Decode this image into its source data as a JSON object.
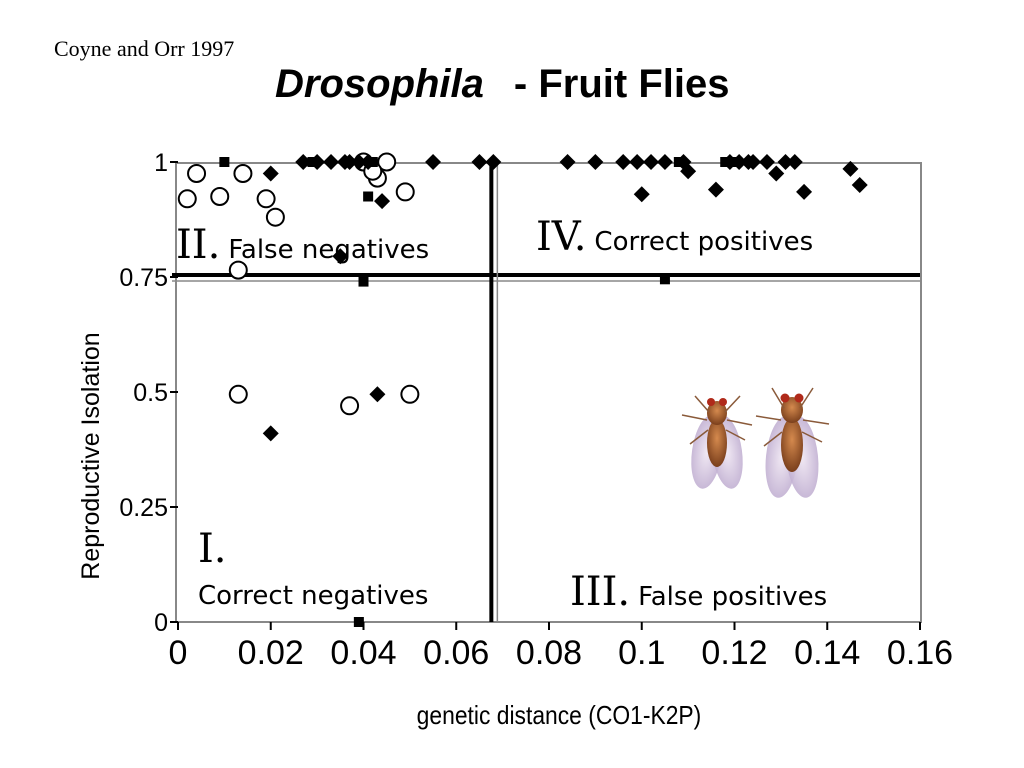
{
  "credit": "Coyne and Orr 1997",
  "title": {
    "italic": "Drosophila",
    "rest": "- Fruit Flies"
  },
  "chart_data": {
    "type": "scatter",
    "xlabel": "genetic distance (CO1-K2P)",
    "ylabel": "Reproductive Isolation",
    "xlim": [
      0,
      0.16
    ],
    "ylim": [
      0,
      1
    ],
    "xticks": [
      "0",
      "0.02",
      "0.04",
      "0.06",
      "0.08",
      "0.1",
      "0.12",
      "0.14",
      "0.16"
    ],
    "yticks": [
      "0",
      "0.25",
      "0.5",
      "0.75",
      "1"
    ],
    "threshold_x": 0.068,
    "threshold_y": 0.75,
    "quadrants": [
      {
        "numeral": "I.",
        "label": "Correct negatives"
      },
      {
        "numeral": "II.",
        "label": "False negatives"
      },
      {
        "numeral": "III.",
        "label": "False positives"
      },
      {
        "numeral": "IV.",
        "label": "Correct positives"
      }
    ],
    "series": [
      {
        "marker": "circle-open",
        "points": [
          [
            0.002,
            0.92
          ],
          [
            0.004,
            0.975
          ],
          [
            0.009,
            0.925
          ],
          [
            0.014,
            0.975
          ],
          [
            0.019,
            0.92
          ],
          [
            0.021,
            0.88
          ],
          [
            0.013,
            0.765
          ],
          [
            0.04,
            1.0
          ],
          [
            0.045,
            1.0
          ],
          [
            0.043,
            0.965
          ],
          [
            0.049,
            0.935
          ],
          [
            0.042,
            0.98
          ],
          [
            0.013,
            0.495
          ],
          [
            0.037,
            0.47
          ],
          [
            0.05,
            0.495
          ]
        ]
      },
      {
        "marker": "diamond-filled",
        "points": [
          [
            0.02,
            0.975
          ],
          [
            0.027,
            1.0
          ],
          [
            0.03,
            1.0
          ],
          [
            0.033,
            1.0
          ],
          [
            0.036,
            1.0
          ],
          [
            0.037,
            1.0
          ],
          [
            0.039,
            1.0
          ],
          [
            0.041,
            1.0
          ],
          [
            0.044,
            0.915
          ],
          [
            0.055,
            1.0
          ],
          [
            0.065,
            1.0
          ],
          [
            0.068,
            1.0
          ],
          [
            0.035,
            0.795
          ],
          [
            0.02,
            0.41
          ],
          [
            0.043,
            0.495
          ],
          [
            0.084,
            1.0
          ],
          [
            0.09,
            1.0
          ],
          [
            0.096,
            1.0
          ],
          [
            0.099,
            1.0
          ],
          [
            0.102,
            1.0
          ],
          [
            0.105,
            1.0
          ],
          [
            0.109,
            1.0
          ],
          [
            0.11,
            0.98
          ],
          [
            0.1,
            0.93
          ],
          [
            0.116,
            0.94
          ],
          [
            0.119,
            1.0
          ],
          [
            0.121,
            1.0
          ],
          [
            0.123,
            1.0
          ],
          [
            0.124,
            1.0
          ],
          [
            0.127,
            1.0
          ],
          [
            0.129,
            0.975
          ],
          [
            0.131,
            1.0
          ],
          [
            0.133,
            1.0
          ],
          [
            0.135,
            0.935
          ],
          [
            0.145,
            0.985
          ],
          [
            0.147,
            0.95
          ]
        ]
      },
      {
        "marker": "square-filled",
        "points": [
          [
            0.01,
            1.0
          ],
          [
            0.029,
            1.0
          ],
          [
            0.042,
            1.0
          ],
          [
            0.041,
            0.925
          ],
          [
            0.04,
            0.74
          ],
          [
            0.039,
            0.0
          ],
          [
            0.105,
            0.745
          ],
          [
            0.108,
            1.0
          ],
          [
            0.118,
            1.0
          ],
          [
            0.12,
            1.0
          ]
        ]
      }
    ]
  },
  "image": {
    "subject": "two fruit flies (Drosophila) photograph"
  }
}
